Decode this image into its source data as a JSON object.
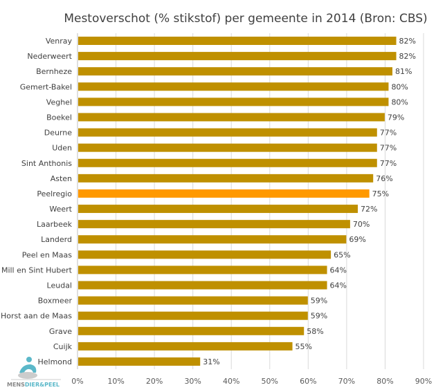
{
  "chart_data": {
    "type": "bar",
    "orientation": "horizontal",
    "title": "Mestoverschot (% stikstof) per gemeente in 2014 (Bron: CBS)",
    "categories": [
      "Venray",
      "Nederweert",
      "Bernheze",
      "Gemert-Bakel",
      "Veghel",
      "Boekel",
      "Deurne",
      "Uden",
      "Sint Anthonis",
      "Asten",
      "Peelregio",
      "Weert",
      "Laarbeek",
      "Landerd",
      "Peel en Maas",
      "Mill en Sint Hubert",
      "Leudal",
      "Boxmeer",
      "Horst aan de Maas",
      "Grave",
      "Cuijk",
      "Helmond"
    ],
    "values": [
      82,
      82,
      81,
      80,
      80,
      79,
      77,
      77,
      77,
      76,
      75,
      72,
      70,
      69,
      65,
      64,
      64,
      59,
      59,
      58,
      55,
      31
    ],
    "data_labels": [
      "82%",
      "82%",
      "81%",
      "80%",
      "80%",
      "79%",
      "77%",
      "77%",
      "77%",
      "76%",
      "75%",
      "72%",
      "70%",
      "69%",
      "65%",
      "64%",
      "64%",
      "59%",
      "59%",
      "58%",
      "55%",
      "31%"
    ],
    "highlight": "Peelregio",
    "xlim": [
      0,
      90
    ],
    "xticks": [
      "0%",
      "10%",
      "20%",
      "30%",
      "40%",
      "50%",
      "60%",
      "70%",
      "80%",
      "90%"
    ],
    "grid": true,
    "colors": {
      "bar": "#BF9000",
      "highlight": "#FF9900",
      "grid": "#D9D9D9"
    }
  },
  "logo": {
    "text": "MENSDIER&PEEL"
  }
}
